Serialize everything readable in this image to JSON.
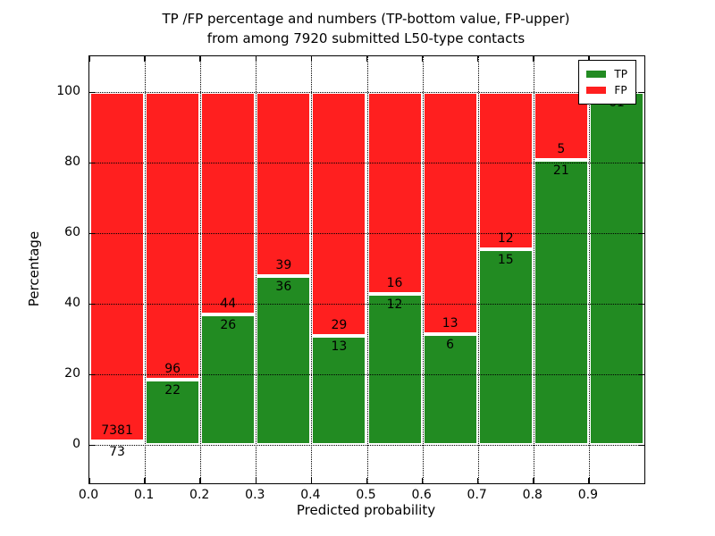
{
  "figure": {
    "title_line1": "TP /FP percentage and numbers (TP-bottom value, FP-upper)",
    "title_line2": "from among 7920 submitted L50-type contacts",
    "xlabel": "Predicted probability",
    "ylabel": "Percentage"
  },
  "chart_data": {
    "type": "bar",
    "stacked": true,
    "normalized": "each bin scaled to 100%, green TP share on bottom, red FP share on top",
    "title": "TP /FP percentage and numbers (TP-bottom value, FP-upper) from among 7920 submitted L50-type contacts",
    "xlabel": "Predicted probability",
    "ylabel": "Percentage",
    "total_contacts": 7920,
    "xlim": [
      0.0,
      1.0
    ],
    "ylim": [
      -10.8,
      110.2
    ],
    "xticks": [
      "0.0",
      "0.1",
      "0.2",
      "0.3",
      "0.4",
      "0.5",
      "0.6",
      "0.7",
      "0.8",
      "0.9"
    ],
    "yticks": [
      0,
      20,
      40,
      60,
      80,
      100
    ],
    "grid": "dotted black, horizontal at yticks and vertical at bin edges",
    "bar_edge_color": "#ffffff",
    "colors": {
      "tp": "#228B22",
      "fp": "#FF1F1F"
    },
    "legend": {
      "position": "upper-right",
      "entries": [
        {
          "label": "TP",
          "color": "#228B22"
        },
        {
          "label": "FP",
          "color": "#FF1F1F"
        }
      ]
    },
    "bins": [
      {
        "x0": 0.0,
        "x1": 0.1,
        "tp": 73,
        "fp": 7381,
        "tp_percent": 1.0,
        "fp_percent": 99.0
      },
      {
        "x0": 0.1,
        "x1": 0.2,
        "tp": 22,
        "fp": 96,
        "tp_percent": 18.6,
        "fp_percent": 81.4
      },
      {
        "x0": 0.2,
        "x1": 0.3,
        "tp": 26,
        "fp": 44,
        "tp_percent": 37.1,
        "fp_percent": 62.9
      },
      {
        "x0": 0.3,
        "x1": 0.4,
        "tp": 36,
        "fp": 39,
        "tp_percent": 48.0,
        "fp_percent": 52.0
      },
      {
        "x0": 0.4,
        "x1": 0.5,
        "tp": 13,
        "fp": 29,
        "tp_percent": 31.0,
        "fp_percent": 69.0
      },
      {
        "x0": 0.5,
        "x1": 0.6,
        "tp": 12,
        "fp": 16,
        "tp_percent": 42.9,
        "fp_percent": 57.1
      },
      {
        "x0": 0.6,
        "x1": 0.7,
        "tp": 6,
        "fp": 13,
        "tp_percent": 31.6,
        "fp_percent": 68.4
      },
      {
        "x0": 0.7,
        "x1": 0.8,
        "tp": 15,
        "fp": 12,
        "tp_percent": 55.6,
        "fp_percent": 44.4
      },
      {
        "x0": 0.8,
        "x1": 0.9,
        "tp": 21,
        "fp": 5,
        "tp_percent": 80.8,
        "fp_percent": 19.2
      },
      {
        "x0": 0.9,
        "x1": 1.0,
        "tp": 61,
        "fp": 0,
        "tp_percent": 100.0,
        "fp_percent": 0.0
      }
    ]
  }
}
